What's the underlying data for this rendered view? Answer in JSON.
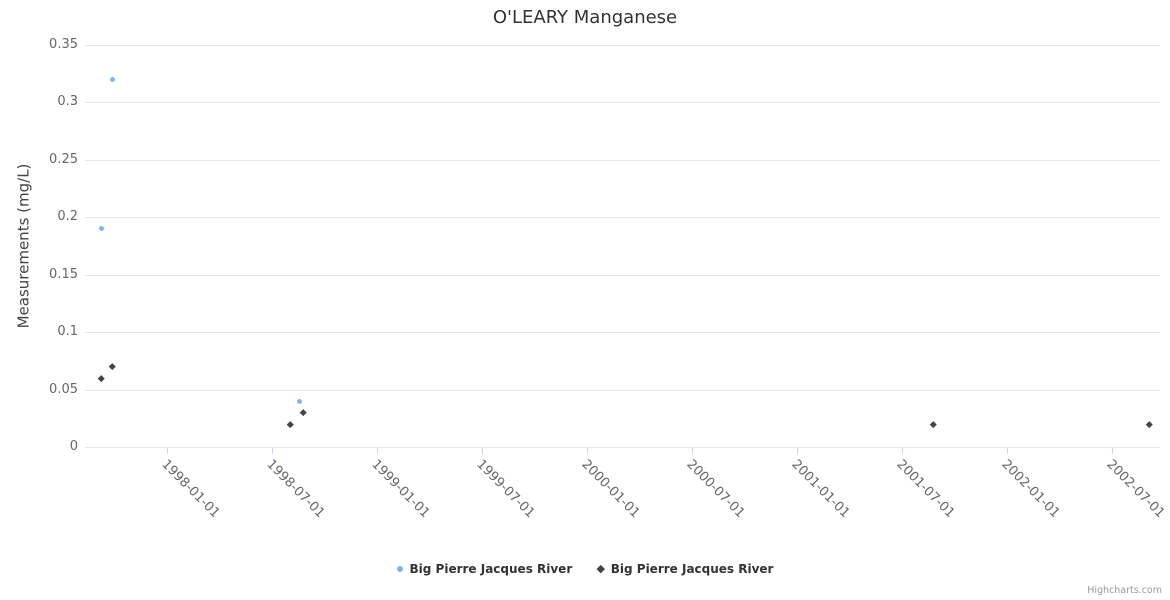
{
  "credits": "Highcharts.com",
  "chart_data": {
    "type": "scatter",
    "title": "O'LEARY Manganese",
    "xlabel": "",
    "ylabel": "Measurements (mg/L)",
    "ylim": [
      0,
      0.35
    ],
    "xlim": [
      1997.61,
      2002.73
    ],
    "grid": "horizontal",
    "legend_position": "bottom-center",
    "y_ticks": [
      {
        "label": "0",
        "y": 0
      },
      {
        "label": "0.05",
        "y": 0.05
      },
      {
        "label": "0.1",
        "y": 0.1
      },
      {
        "label": "0.15",
        "y": 0.15
      },
      {
        "label": "0.2",
        "y": 0.2
      },
      {
        "label": "0.25",
        "y": 0.25
      },
      {
        "label": "0.3",
        "y": 0.3
      },
      {
        "label": "0.35",
        "y": 0.35
      }
    ],
    "x_ticks": [
      {
        "label": "1998-01-01",
        "x": 1998.0
      },
      {
        "label": "1998-07-01",
        "x": 1998.5
      },
      {
        "label": "1999-01-01",
        "x": 1999.0
      },
      {
        "label": "1999-07-01",
        "x": 1999.5
      },
      {
        "label": "2000-01-01",
        "x": 2000.0
      },
      {
        "label": "2000-07-01",
        "x": 2000.5
      },
      {
        "label": "2001-01-01",
        "x": 2001.0
      },
      {
        "label": "2001-07-01",
        "x": 2001.5
      },
      {
        "label": "2002-01-01",
        "x": 2002.0
      },
      {
        "label": "2002-07-01",
        "x": 2002.5
      }
    ],
    "series": [
      {
        "name": "Big Pierre Jacques River",
        "marker": "circle",
        "color": "#7cb5ec",
        "points": [
          {
            "date": "1997-09-11",
            "x": 1997.69,
            "y": 0.19
          },
          {
            "date": "1997-09-28",
            "x": 1997.74,
            "y": 0.32
          },
          {
            "date": "1998-08-19",
            "x": 1998.63,
            "y": 0.04
          }
        ]
      },
      {
        "name": "Big Pierre Jacques River",
        "marker": "diamond",
        "color": "#434348",
        "points": [
          {
            "date": "1997-09-11",
            "x": 1997.69,
            "y": 0.06
          },
          {
            "date": "1997-09-28",
            "x": 1997.74,
            "y": 0.07
          },
          {
            "date": "1998-08-04",
            "x": 1998.59,
            "y": 0.02
          },
          {
            "date": "1998-08-24",
            "x": 1998.65,
            "y": 0.03
          },
          {
            "date": "2001-08-26",
            "x": 2001.65,
            "y": 0.02
          },
          {
            "date": "2002-09-03",
            "x": 2002.68,
            "y": 0.02
          }
        ]
      }
    ]
  }
}
